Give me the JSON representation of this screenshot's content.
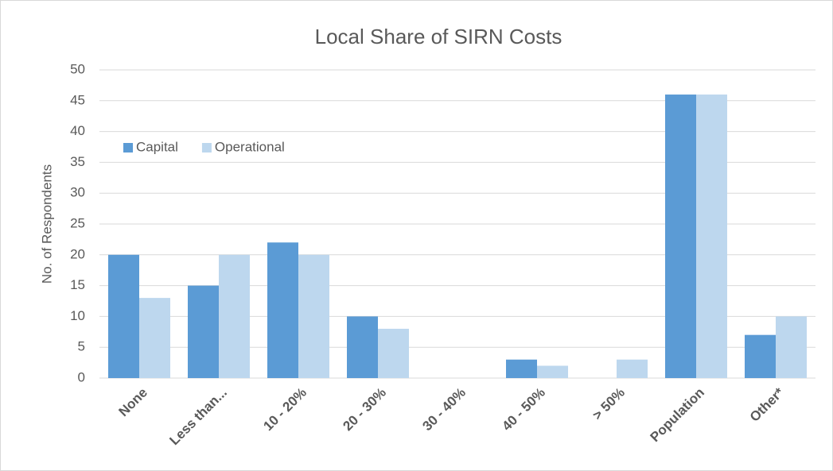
{
  "chart_data": {
    "type": "bar",
    "title": "Local Share of SIRN Costs",
    "y_label": "No. of Respondents",
    "categories": [
      "None",
      "Less than...",
      "10 - 20%",
      "20 - 30%",
      "30 - 40%",
      "40 - 50%",
      "> 50%",
      "Population",
      "Other*"
    ],
    "series": [
      {
        "name": "Capital",
        "color": "#5b9bd5",
        "values": [
          20,
          15,
          22,
          10,
          0,
          3,
          0,
          46,
          7
        ]
      },
      {
        "name": "Operational",
        "color": "#bdd7ee",
        "values": [
          13,
          20,
          20,
          8,
          0,
          2,
          3,
          46,
          10
        ]
      }
    ],
    "ylim": [
      0,
      50
    ],
    "yticks": [
      0,
      5,
      10,
      15,
      20,
      25,
      30,
      35,
      40,
      45,
      50
    ],
    "grid": true,
    "legend": "upper left"
  }
}
